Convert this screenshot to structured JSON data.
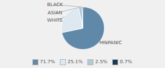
{
  "chart_data": {
    "type": "pie",
    "categories": [
      "HISPANIC",
      "WHITE",
      "ASIAN",
      "BLACK"
    ],
    "values": [
      71.7,
      25.1,
      2.5,
      0.7
    ],
    "value_labels": [
      "71.7%",
      "25.1%",
      "2.5%",
      "0.7%"
    ],
    "colors": [
      "#6088a8",
      "#dde8f0",
      "#b0c8d8",
      "#1a3a5c"
    ],
    "legend": "bottom"
  }
}
